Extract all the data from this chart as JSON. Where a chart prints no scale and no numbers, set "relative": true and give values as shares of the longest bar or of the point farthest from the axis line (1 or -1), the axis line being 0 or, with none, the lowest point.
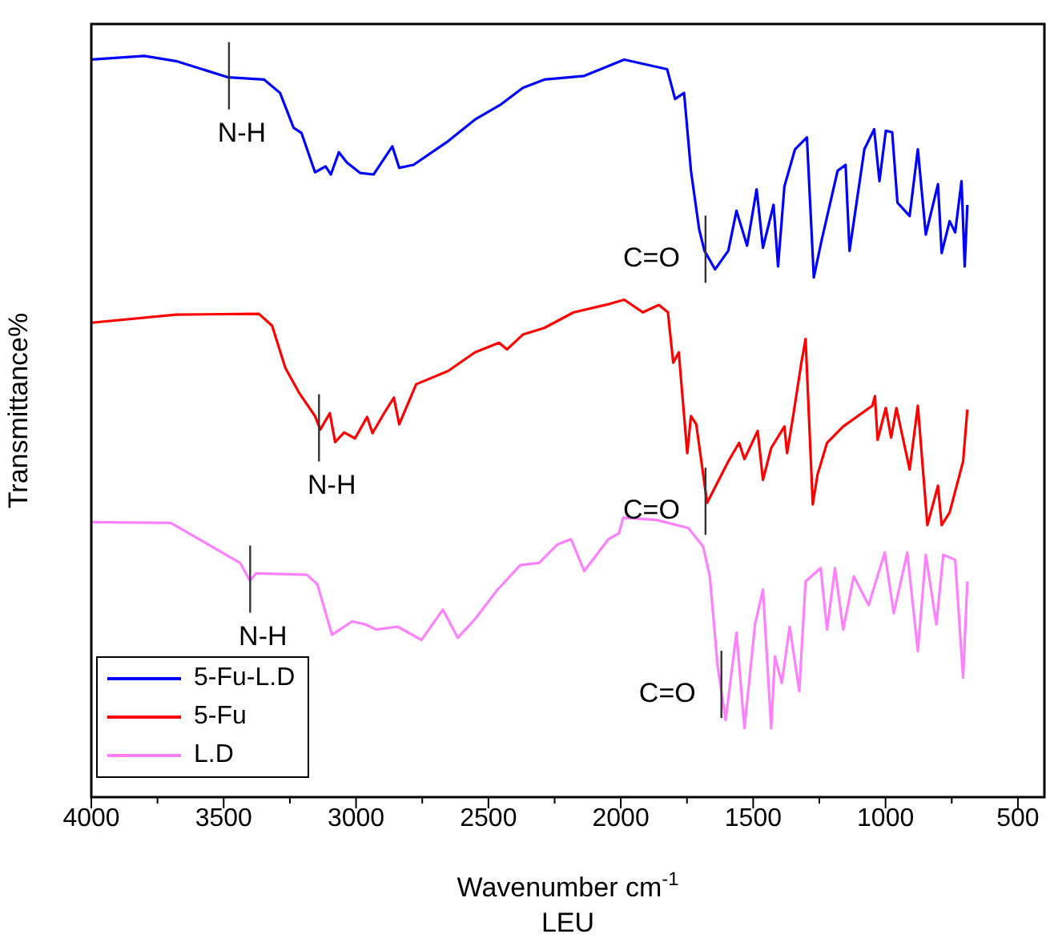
{
  "chart_data": {
    "type": "line",
    "relative": true,
    "xlabel": "Wavenumber cm$^{-1}$",
    "ylabel": "Transmittance%",
    "xlim": [
      4000,
      400
    ],
    "xticks": [
      4000,
      {
        "value": 3750,
        "label": null
      },
      3500,
      {
        "value": 3250,
        "label": null
      },
      3000,
      {
        "value": 2750,
        "label": null
      },
      2500,
      {
        "value": 2250,
        "label": null
      },
      2000,
      {
        "value": 1750,
        "label": null
      },
      1500,
      {
        "value": 1250,
        "label": null
      },
      1000,
      {
        "value": 750,
        "label": null
      },
      500
    ],
    "tick_labels": "x",
    "grid": false,
    "legend": "bottom left",
    "marker": "none",
    "line_style": "solid",
    "annotations": [
      {
        "text": "N-H",
        "x": 3480,
        "y": 0.971
      },
      {
        "text": "C=O",
        "x": 1680,
        "y": 0.737
      },
      {
        "text": "N-H",
        "x": 3140,
        "y": 0.496
      },
      {
        "text": "C=O",
        "x": 1680,
        "y": 0.397
      },
      {
        "text": "N-H",
        "x": 3400,
        "y": 0.292
      },
      {
        "text": "C=O",
        "x": 1620,
        "y": 0.15
      },
      "LEU"
    ],
    "series": [
      {
        "name": "5-Fu-L.D",
        "color": "#0000ff",
        "x": [
          4000,
          3800,
          3680,
          3482,
          3347,
          3287,
          3236,
          3206,
          3155,
          3115,
          3095,
          3065,
          3034,
          2984,
          2934,
          2863,
          2837,
          2783,
          2652,
          2551,
          2451,
          2370,
          2289,
          2138,
          1987,
          1825,
          1795,
          1761,
          1735,
          1704,
          1684,
          1644,
          1594,
          1563,
          1523,
          1487,
          1463,
          1423,
          1406,
          1382,
          1342,
          1297,
          1271,
          1241,
          1181,
          1151,
          1136,
          1080,
          1043,
          1023,
          999,
          975,
          955,
          909,
          878,
          848,
          802,
          788,
          758,
          737,
          713,
          701,
          691
        ],
        "values": [
          0.995,
          1.0,
          0.993,
          0.971,
          0.968,
          0.95,
          0.903,
          0.896,
          0.843,
          0.851,
          0.84,
          0.87,
          0.856,
          0.842,
          0.84,
          0.878,
          0.849,
          0.853,
          0.885,
          0.914,
          0.935,
          0.957,
          0.968,
          0.973,
          0.995,
          0.982,
          0.942,
          0.95,
          0.845,
          0.766,
          0.737,
          0.712,
          0.737,
          0.791,
          0.744,
          0.82,
          0.741,
          0.799,
          0.716,
          0.824,
          0.874,
          0.89,
          0.701,
          0.752,
          0.845,
          0.853,
          0.737,
          0.874,
          0.901,
          0.831,
          0.899,
          0.897,
          0.802,
          0.784,
          0.874,
          0.759,
          0.827,
          0.734,
          0.777,
          0.762,
          0.831,
          0.716,
          0.799
        ]
      },
      {
        "name": "5-Fu",
        "color": "#ff0000",
        "x": [
          4000,
          3680,
          3367,
          3317,
          3267,
          3216,
          3155,
          3135,
          3099,
          3079,
          3045,
          3004,
          2958,
          2938,
          2894,
          2857,
          2837,
          2773,
          2652,
          2551,
          2460,
          2430,
          2370,
          2289,
          2178,
          2047,
          1987,
          1917,
          1856,
          1822,
          1802,
          1781,
          1749,
          1735,
          1715,
          1674,
          1594,
          1553,
          1533,
          1483,
          1463,
          1432,
          1382,
          1372,
          1346,
          1318,
          1302,
          1275,
          1257,
          1221,
          1160,
          1050,
          1040,
          1030,
          999,
          979,
          959,
          909,
          878,
          842,
          802,
          788,
          758,
          707,
          691
        ],
        "values": [
          0.64,
          0.651,
          0.652,
          0.636,
          0.579,
          0.546,
          0.514,
          0.496,
          0.518,
          0.479,
          0.492,
          0.484,
          0.513,
          0.491,
          0.518,
          0.539,
          0.503,
          0.557,
          0.575,
          0.6,
          0.613,
          0.604,
          0.624,
          0.633,
          0.654,
          0.665,
          0.671,
          0.654,
          0.664,
          0.654,
          0.586,
          0.6,
          0.464,
          0.514,
          0.503,
          0.397,
          0.453,
          0.478,
          0.456,
          0.494,
          0.428,
          0.471,
          0.5,
          0.464,
          0.521,
          0.586,
          0.618,
          0.395,
          0.435,
          0.478,
          0.5,
          0.528,
          0.541,
          0.482,
          0.525,
          0.485,
          0.525,
          0.442,
          0.528,
          0.367,
          0.42,
          0.367,
          0.384,
          0.453,
          0.523
        ]
      },
      {
        "name": "L.D",
        "color": "#ff80ff",
        "x": [
          4000,
          3700,
          3579,
          3438,
          3401,
          3377,
          3186,
          3146,
          3091,
          3015,
          2964,
          2924,
          2843,
          2753,
          2672,
          2616,
          2551,
          2470,
          2380,
          2309,
          2239,
          2188,
          2138,
          2047,
          2007,
          1991,
          1866,
          1745,
          1689,
          1664,
          1634,
          1604,
          1563,
          1533,
          1493,
          1463,
          1432,
          1418,
          1392,
          1362,
          1326,
          1302,
          1245,
          1221,
          1191,
          1160,
          1120,
          1064,
          1003,
          969,
          918,
          878,
          848,
          808,
          782,
          737,
          707,
          691
        ],
        "values": [
          0.371,
          0.37,
          0.345,
          0.316,
          0.292,
          0.302,
          0.3,
          0.287,
          0.219,
          0.237,
          0.233,
          0.226,
          0.23,
          0.212,
          0.253,
          0.215,
          0.24,
          0.278,
          0.313,
          0.316,
          0.341,
          0.348,
          0.305,
          0.348,
          0.356,
          0.377,
          0.374,
          0.363,
          0.338,
          0.298,
          0.176,
          0.104,
          0.222,
          0.093,
          0.233,
          0.28,
          0.093,
          0.19,
          0.154,
          0.23,
          0.143,
          0.291,
          0.309,
          0.226,
          0.309,
          0.226,
          0.298,
          0.259,
          0.33,
          0.248,
          0.33,
          0.197,
          0.327,
          0.233,
          0.327,
          0.32,
          0.161,
          0.291
        ]
      }
    ]
  }
}
